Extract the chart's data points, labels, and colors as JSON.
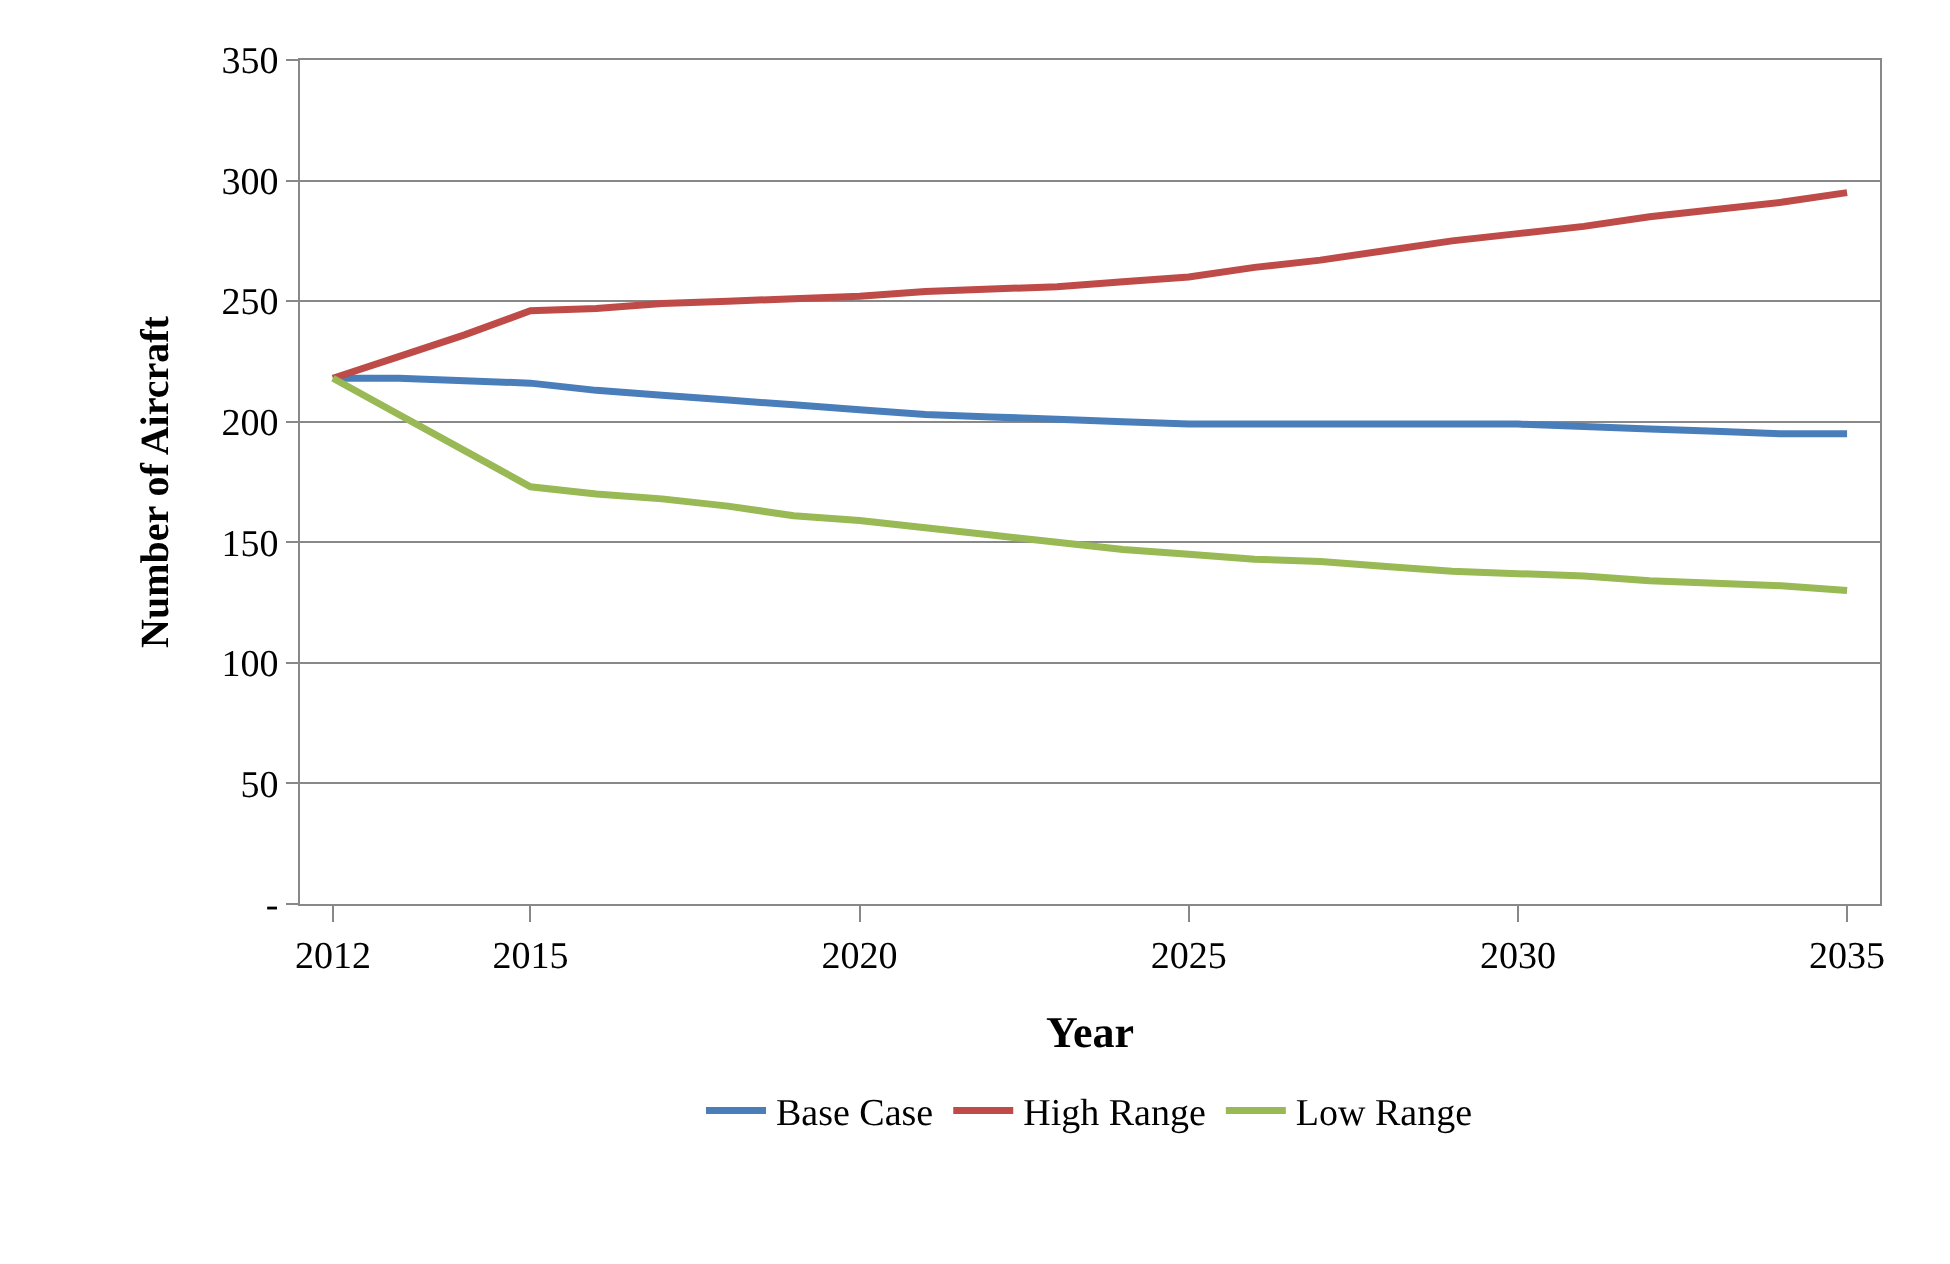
{
  "chart_data": {
    "type": "line",
    "xlabel": "Year",
    "ylabel": "Number of Aircraft",
    "x": [
      2012,
      2013,
      2014,
      2015,
      2016,
      2017,
      2018,
      2019,
      2020,
      2021,
      2022,
      2023,
      2024,
      2025,
      2026,
      2027,
      2028,
      2029,
      2030,
      2031,
      2032,
      2033,
      2034,
      2035
    ],
    "series": [
      {
        "name": "Base Case",
        "color": "#4a7ebb",
        "values": [
          218,
          218,
          217,
          216,
          213,
          211,
          209,
          207,
          205,
          203,
          202,
          201,
          200,
          199,
          199,
          199,
          199,
          199,
          199,
          198,
          197,
          196,
          195,
          195
        ]
      },
      {
        "name": "High Range",
        "color": "#be4b48",
        "values": [
          218,
          227,
          236,
          246,
          247,
          249,
          250,
          251,
          252,
          254,
          255,
          256,
          258,
          260,
          264,
          267,
          271,
          275,
          278,
          281,
          285,
          288,
          291,
          295
        ]
      },
      {
        "name": "Low Range",
        "color": "#98b954",
        "values": [
          218,
          203,
          188,
          173,
          170,
          168,
          165,
          161,
          159,
          156,
          153,
          150,
          147,
          145,
          143,
          142,
          140,
          138,
          137,
          136,
          134,
          133,
          132,
          130
        ]
      }
    ],
    "xlim": [
      2011.5,
      2035.5
    ],
    "xticks": [
      2012,
      2015,
      2020,
      2025,
      2030,
      2035
    ],
    "ylim": [
      0,
      350
    ],
    "yticks": [
      {
        "value": 0,
        "label": "-"
      },
      50,
      100,
      150,
      200,
      250,
      300,
      350
    ],
    "grid": "y",
    "legend": "bottom",
    "marker": "none",
    "line_style": "solid"
  }
}
